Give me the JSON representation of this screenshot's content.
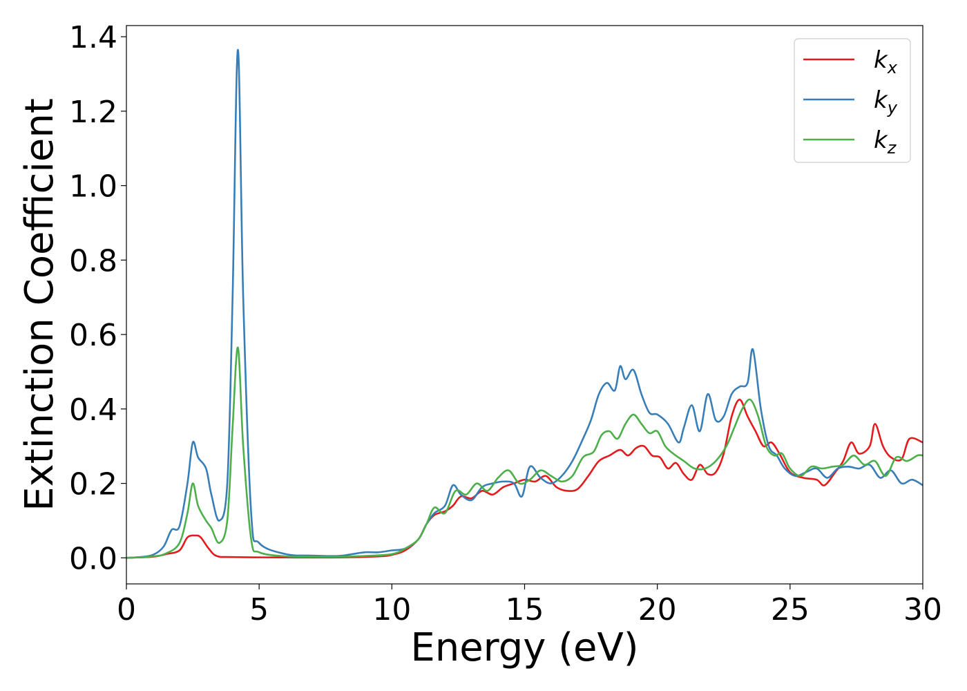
{
  "chart_data": {
    "type": "line",
    "title": "",
    "xlabel": "Energy (eV)",
    "ylabel": "Extinction Coefficient",
    "xlim": [
      0,
      30
    ],
    "ylim": [
      -0.07,
      1.43
    ],
    "xticks": [
      0,
      5,
      10,
      15,
      20,
      25,
      30
    ],
    "yticks": [
      0.0,
      0.2,
      0.4,
      0.6,
      0.8,
      1.0,
      1.2,
      1.4
    ],
    "xtick_labels": [
      "0",
      "5",
      "10",
      "15",
      "20",
      "25",
      "30"
    ],
    "ytick_labels": [
      "0.0",
      "0.2",
      "0.4",
      "0.6",
      "0.8",
      "1.0",
      "1.2",
      "1.4"
    ],
    "grid": false,
    "legend_position": "top-right",
    "series": [
      {
        "name": "kx",
        "label_main": "k",
        "label_sub": "x",
        "color": "#e41a1c",
        "points": [
          [
            0,
            0
          ],
          [
            1,
            0.003
          ],
          [
            1.5,
            0.01
          ],
          [
            2,
            0.02
          ],
          [
            2.3,
            0.055
          ],
          [
            2.6,
            0.06
          ],
          [
            2.8,
            0.055
          ],
          [
            3.1,
            0.025
          ],
          [
            3.4,
            0.005
          ],
          [
            4,
            0.002
          ],
          [
            6,
            0.001
          ],
          [
            8,
            0.001
          ],
          [
            9.5,
            0.004
          ],
          [
            10,
            0.008
          ],
          [
            10.5,
            0.02
          ],
          [
            11,
            0.05
          ],
          [
            11.3,
            0.09
          ],
          [
            11.6,
            0.115
          ],
          [
            12,
            0.125
          ],
          [
            12.3,
            0.14
          ],
          [
            12.6,
            0.165
          ],
          [
            13,
            0.16
          ],
          [
            13.4,
            0.18
          ],
          [
            13.8,
            0.17
          ],
          [
            14.2,
            0.19
          ],
          [
            14.6,
            0.2
          ],
          [
            15,
            0.21
          ],
          [
            15.4,
            0.205
          ],
          [
            15.8,
            0.22
          ],
          [
            16.2,
            0.19
          ],
          [
            16.6,
            0.18
          ],
          [
            17,
            0.185
          ],
          [
            17.4,
            0.22
          ],
          [
            17.8,
            0.26
          ],
          [
            18.2,
            0.275
          ],
          [
            18.6,
            0.29
          ],
          [
            18.9,
            0.275
          ],
          [
            19.2,
            0.295
          ],
          [
            19.5,
            0.3
          ],
          [
            19.8,
            0.275
          ],
          [
            20.1,
            0.27
          ],
          [
            20.4,
            0.24
          ],
          [
            20.7,
            0.255
          ],
          [
            21,
            0.225
          ],
          [
            21.3,
            0.21
          ],
          [
            21.6,
            0.25
          ],
          [
            21.9,
            0.225
          ],
          [
            22.2,
            0.23
          ],
          [
            22.5,
            0.28
          ],
          [
            22.8,
            0.38
          ],
          [
            23.1,
            0.425
          ],
          [
            23.4,
            0.38
          ],
          [
            23.7,
            0.34
          ],
          [
            24,
            0.3
          ],
          [
            24.3,
            0.31
          ],
          [
            24.6,
            0.28
          ],
          [
            25,
            0.23
          ],
          [
            25.5,
            0.215
          ],
          [
            26,
            0.21
          ],
          [
            26.3,
            0.195
          ],
          [
            26.7,
            0.23
          ],
          [
            27,
            0.26
          ],
          [
            27.3,
            0.31
          ],
          [
            27.6,
            0.28
          ],
          [
            28,
            0.3
          ],
          [
            28.2,
            0.36
          ],
          [
            28.5,
            0.3
          ],
          [
            28.8,
            0.27
          ],
          [
            29.2,
            0.265
          ],
          [
            29.5,
            0.32
          ],
          [
            30,
            0.31
          ]
        ]
      },
      {
        "name": "ky",
        "label_main": "k",
        "label_sub": "y",
        "color": "#377eb8",
        "points": [
          [
            0,
            0
          ],
          [
            0.5,
            0.002
          ],
          [
            1,
            0.008
          ],
          [
            1.4,
            0.03
          ],
          [
            1.7,
            0.075
          ],
          [
            2,
            0.085
          ],
          [
            2.3,
            0.2
          ],
          [
            2.5,
            0.31
          ],
          [
            2.7,
            0.27
          ],
          [
            3,
            0.24
          ],
          [
            3.2,
            0.17
          ],
          [
            3.5,
            0.1
          ],
          [
            3.8,
            0.2
          ],
          [
            4,
            0.7
          ],
          [
            4.2,
            1.365
          ],
          [
            4.4,
            0.7
          ],
          [
            4.7,
            0.12
          ],
          [
            5,
            0.04
          ],
          [
            6,
            0.01
          ],
          [
            7,
            0.006
          ],
          [
            8,
            0.005
          ],
          [
            8.5,
            0.01
          ],
          [
            9,
            0.015
          ],
          [
            9.5,
            0.015
          ],
          [
            10,
            0.02
          ],
          [
            10.5,
            0.025
          ],
          [
            11,
            0.05
          ],
          [
            11.3,
            0.09
          ],
          [
            11.6,
            0.12
          ],
          [
            12,
            0.14
          ],
          [
            12.3,
            0.195
          ],
          [
            12.6,
            0.17
          ],
          [
            13,
            0.155
          ],
          [
            13.4,
            0.19
          ],
          [
            13.8,
            0.2
          ],
          [
            14.2,
            0.205
          ],
          [
            14.6,
            0.2
          ],
          [
            14.9,
            0.165
          ],
          [
            15.2,
            0.245
          ],
          [
            15.6,
            0.215
          ],
          [
            16,
            0.2
          ],
          [
            16.4,
            0.22
          ],
          [
            16.8,
            0.26
          ],
          [
            17.2,
            0.32
          ],
          [
            17.5,
            0.37
          ],
          [
            17.8,
            0.44
          ],
          [
            18.1,
            0.47
          ],
          [
            18.4,
            0.45
          ],
          [
            18.6,
            0.515
          ],
          [
            18.8,
            0.48
          ],
          [
            19.1,
            0.505
          ],
          [
            19.4,
            0.44
          ],
          [
            19.7,
            0.39
          ],
          [
            20,
            0.385
          ],
          [
            20.4,
            0.36
          ],
          [
            20.8,
            0.31
          ],
          [
            21,
            0.35
          ],
          [
            21.3,
            0.41
          ],
          [
            21.6,
            0.34
          ],
          [
            21.9,
            0.44
          ],
          [
            22.2,
            0.37
          ],
          [
            22.5,
            0.38
          ],
          [
            22.8,
            0.44
          ],
          [
            23.1,
            0.46
          ],
          [
            23.4,
            0.47
          ],
          [
            23.6,
            0.56
          ],
          [
            23.9,
            0.4
          ],
          [
            24.2,
            0.3
          ],
          [
            24.5,
            0.275
          ],
          [
            24.8,
            0.24
          ],
          [
            25.2,
            0.22
          ],
          [
            25.6,
            0.23
          ],
          [
            26,
            0.24
          ],
          [
            26.4,
            0.215
          ],
          [
            26.8,
            0.24
          ],
          [
            27.2,
            0.245
          ],
          [
            27.6,
            0.24
          ],
          [
            28,
            0.25
          ],
          [
            28.4,
            0.215
          ],
          [
            28.8,
            0.235
          ],
          [
            29.2,
            0.2
          ],
          [
            29.6,
            0.21
          ],
          [
            30,
            0.195
          ]
        ]
      },
      {
        "name": "kz",
        "label_main": "k",
        "label_sub": "z",
        "color": "#4daf4a",
        "points": [
          [
            0,
            0
          ],
          [
            1,
            0.004
          ],
          [
            1.5,
            0.012
          ],
          [
            2,
            0.04
          ],
          [
            2.3,
            0.12
          ],
          [
            2.5,
            0.2
          ],
          [
            2.7,
            0.14
          ],
          [
            3,
            0.1
          ],
          [
            3.2,
            0.08
          ],
          [
            3.5,
            0.04
          ],
          [
            3.8,
            0.1
          ],
          [
            4,
            0.35
          ],
          [
            4.2,
            0.565
          ],
          [
            4.4,
            0.3
          ],
          [
            4.7,
            0.05
          ],
          [
            5,
            0.015
          ],
          [
            6,
            0.004
          ],
          [
            7,
            0.003
          ],
          [
            8,
            0.003
          ],
          [
            9,
            0.005
          ],
          [
            10,
            0.01
          ],
          [
            10.5,
            0.025
          ],
          [
            11,
            0.05
          ],
          [
            11.3,
            0.09
          ],
          [
            11.6,
            0.135
          ],
          [
            12,
            0.12
          ],
          [
            12.4,
            0.18
          ],
          [
            12.8,
            0.17
          ],
          [
            13.2,
            0.2
          ],
          [
            13.6,
            0.18
          ],
          [
            14,
            0.215
          ],
          [
            14.4,
            0.235
          ],
          [
            14.8,
            0.2
          ],
          [
            15.2,
            0.21
          ],
          [
            15.6,
            0.235
          ],
          [
            16,
            0.22
          ],
          [
            16.4,
            0.205
          ],
          [
            16.8,
            0.22
          ],
          [
            17.2,
            0.27
          ],
          [
            17.6,
            0.285
          ],
          [
            17.9,
            0.33
          ],
          [
            18.2,
            0.34
          ],
          [
            18.5,
            0.32
          ],
          [
            18.8,
            0.36
          ],
          [
            19.1,
            0.385
          ],
          [
            19.4,
            0.36
          ],
          [
            19.7,
            0.335
          ],
          [
            20,
            0.34
          ],
          [
            20.3,
            0.3
          ],
          [
            20.6,
            0.28
          ],
          [
            21,
            0.26
          ],
          [
            21.4,
            0.24
          ],
          [
            21.8,
            0.24
          ],
          [
            22.2,
            0.26
          ],
          [
            22.6,
            0.3
          ],
          [
            22.9,
            0.35
          ],
          [
            23.2,
            0.4
          ],
          [
            23.5,
            0.425
          ],
          [
            23.8,
            0.38
          ],
          [
            24.1,
            0.3
          ],
          [
            24.4,
            0.275
          ],
          [
            24.7,
            0.28
          ],
          [
            25,
            0.24
          ],
          [
            25.4,
            0.22
          ],
          [
            25.8,
            0.245
          ],
          [
            26.2,
            0.24
          ],
          [
            26.6,
            0.245
          ],
          [
            27,
            0.25
          ],
          [
            27.4,
            0.275
          ],
          [
            27.8,
            0.25
          ],
          [
            28.2,
            0.26
          ],
          [
            28.6,
            0.22
          ],
          [
            29,
            0.27
          ],
          [
            29.4,
            0.26
          ],
          [
            29.8,
            0.275
          ],
          [
            30,
            0.275
          ]
        ]
      }
    ]
  }
}
